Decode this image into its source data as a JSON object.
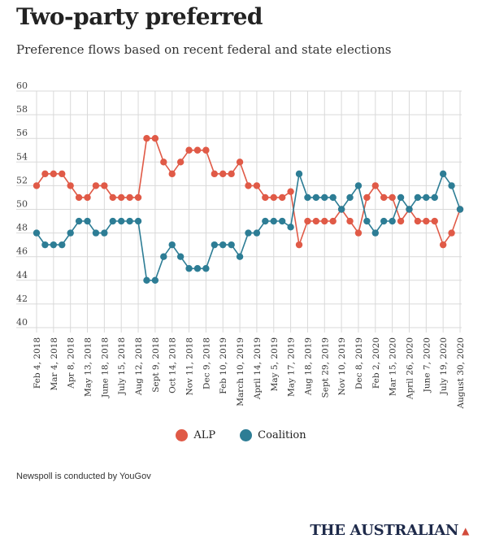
{
  "header": {
    "title": "Two-party preferred",
    "subtitle": "Preference flows based on recent federal and state elections"
  },
  "legend": {
    "items": [
      {
        "label": "ALP",
        "color": "#e05a47"
      },
      {
        "label": "Coalition",
        "color": "#2d7d95"
      }
    ]
  },
  "footer": {
    "source": "Newspoll is conducted by YouGov",
    "brand": "THE AUSTRALIAN",
    "brand_icon": "bird-logo-icon"
  },
  "chart_data": {
    "type": "line",
    "ylim": [
      40,
      60
    ],
    "yticks": [
      40,
      42,
      44,
      46,
      48,
      50,
      52,
      54,
      56,
      58,
      60
    ],
    "grid": true,
    "legend_position": "bottom-center",
    "x_labels": [
      "Feb 4, 2018",
      "Mar 4, 2018",
      "Apr 8, 2018",
      "May 13, 2018",
      "June 18, 2018",
      "July 15, 2018",
      "Aug 12, 2018",
      "Sept 9, 2018",
      "Oct 14, 2018",
      "Nov 11, 2018",
      "Dec 9, 2018",
      "Feb 10, 2019",
      "March 10, 2019",
      "April 14, 2019",
      "May 5, 2019",
      "May 17, 2019",
      "Aug 18, 2019",
      "Sept 29, 2019",
      "Nov 10, 2019",
      "Dec 8, 2019",
      "Feb 2, 2020",
      "Mar 15, 2020",
      "April 26, 2020",
      "June 7, 2020",
      "July 19, 2020",
      "August 30, 2020"
    ],
    "series": [
      {
        "name": "ALP",
        "color": "#e05a47",
        "values": [
          52,
          53,
          53,
          53,
          52,
          51,
          51,
          52,
          52,
          51,
          51,
          51,
          51,
          56,
          56,
          54,
          53,
          54,
          55,
          55,
          55,
          53,
          53,
          53,
          54,
          52,
          52,
          51,
          51,
          51,
          51.5,
          47,
          49,
          49,
          49,
          49,
          50,
          49,
          48,
          51,
          52,
          51,
          51,
          49,
          50,
          49,
          49,
          49,
          47,
          48,
          50
        ]
      },
      {
        "name": "Coalition",
        "color": "#2d7d95",
        "values": [
          48,
          47,
          47,
          47,
          48,
          49,
          49,
          48,
          48,
          49,
          49,
          49,
          49,
          44,
          44,
          46,
          47,
          46,
          45,
          45,
          45,
          47,
          47,
          47,
          46,
          48,
          48,
          49,
          49,
          49,
          48.5,
          53,
          51,
          51,
          51,
          51,
          50,
          51,
          52,
          49,
          48,
          49,
          49,
          51,
          50,
          51,
          51,
          51,
          53,
          52,
          50
        ]
      }
    ]
  }
}
